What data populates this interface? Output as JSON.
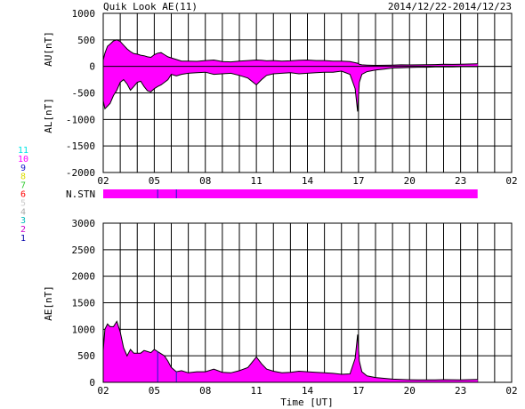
{
  "header": {
    "title": "Quik Look AE(11)",
    "date_range": "2014/12/22-2014/12/23"
  },
  "station_legend": [
    {
      "label": "11",
      "color": "#00e5e5"
    },
    {
      "label": "10",
      "color": "#ff00ff"
    },
    {
      "label": "9",
      "color": "#1a1acc"
    },
    {
      "label": "8",
      "color": "#dddd00"
    },
    {
      "label": "7",
      "color": "#33cc33"
    },
    {
      "label": "6",
      "color": "#ff0000"
    },
    {
      "label": "5",
      "color": "#cccccc"
    },
    {
      "label": "4",
      "color": "#aaaaaa"
    },
    {
      "label": "3",
      "color": "#00bbbb"
    },
    {
      "label": "2",
      "color": "#cc00cc"
    },
    {
      "label": "1",
      "color": "#0000aa"
    }
  ],
  "colors": {
    "fill": "#ff00ff",
    "line": "#000000",
    "marker": "#1a1acc"
  },
  "chart_data": [
    {
      "type": "area",
      "name": "AU-AL",
      "ylabel_top": "AU[nT]",
      "ylabel_bottom": "AL[nT]",
      "ylim": [
        -2000,
        1000
      ],
      "yticks": [
        1000,
        500,
        0,
        -500,
        -1000,
        -1500,
        -2000
      ],
      "xlim": [
        2,
        26
      ],
      "xticks": [
        "02",
        "05",
        "08",
        "11",
        "14",
        "17",
        "20",
        "23",
        "02"
      ],
      "grid": true,
      "x": [
        2.0,
        2.1,
        2.25,
        2.4,
        2.6,
        2.8,
        3.0,
        3.2,
        3.4,
        3.6,
        3.8,
        4.0,
        4.2,
        4.4,
        4.6,
        4.8,
        5.0,
        5.2,
        5.4,
        5.6,
        5.8,
        6.0,
        6.3,
        6.6,
        7.0,
        7.5,
        8.0,
        8.5,
        9.0,
        9.5,
        10.0,
        10.5,
        11.0,
        11.3,
        11.6,
        12.0,
        12.5,
        13.0,
        13.5,
        14.0,
        14.5,
        15.0,
        15.5,
        16.0,
        16.5,
        16.8,
        16.95,
        17.05,
        17.2,
        17.5,
        18.0,
        18.5,
        19.0,
        19.5,
        20.0,
        20.5,
        21.0,
        21.5,
        22.0,
        22.5,
        23.0,
        23.5,
        24.0
      ],
      "au": [
        120,
        250,
        380,
        420,
        480,
        500,
        470,
        400,
        330,
        280,
        240,
        230,
        210,
        200,
        180,
        170,
        220,
        250,
        260,
        220,
        180,
        160,
        130,
        100,
        100,
        95,
        110,
        120,
        90,
        85,
        100,
        110,
        120,
        115,
        105,
        110,
        100,
        105,
        115,
        120,
        110,
        110,
        100,
        100,
        90,
        70,
        60,
        40,
        30,
        25,
        20,
        22,
        25,
        30,
        28,
        30,
        32,
        35,
        40,
        38,
        40,
        45,
        50
      ],
      "al": [
        -650,
        -800,
        -750,
        -700,
        -550,
        -450,
        -300,
        -250,
        -330,
        -450,
        -380,
        -300,
        -280,
        -380,
        -460,
        -480,
        -420,
        -380,
        -350,
        -300,
        -250,
        -150,
        -180,
        -150,
        -130,
        -120,
        -110,
        -150,
        -140,
        -130,
        -170,
        -220,
        -350,
        -250,
        -170,
        -140,
        -130,
        -120,
        -140,
        -130,
        -120,
        -110,
        -110,
        -90,
        -150,
        -420,
        -850,
        -300,
        -150,
        -100,
        -70,
        -50,
        -30,
        -25,
        -20,
        -15,
        -15,
        -10,
        -10,
        -10,
        -5,
        -5,
        -5
      ]
    },
    {
      "type": "bar",
      "name": "N.STN",
      "label": "N.STN",
      "xlim": [
        2,
        26
      ],
      "segments": [
        {
          "from": 2.0,
          "to": 24.0,
          "stations": 10
        }
      ],
      "markers": [
        5.2,
        6.3
      ]
    },
    {
      "type": "area",
      "name": "AE",
      "ylabel": "AE[nT]",
      "xlabel": "Time [UT]",
      "ylim": [
        0,
        3000
      ],
      "yticks": [
        3000,
        2500,
        2000,
        1500,
        1000,
        500,
        0
      ],
      "xlim": [
        2,
        26
      ],
      "xticks": [
        "02",
        "05",
        "08",
        "11",
        "14",
        "17",
        "20",
        "23",
        "02"
      ],
      "grid": true,
      "x": [
        2.0,
        2.1,
        2.25,
        2.4,
        2.6,
        2.8,
        3.0,
        3.2,
        3.4,
        3.6,
        3.8,
        4.0,
        4.2,
        4.4,
        4.6,
        4.8,
        5.0,
        5.2,
        5.4,
        5.6,
        5.8,
        6.0,
        6.3,
        6.6,
        7.0,
        7.5,
        8.0,
        8.5,
        9.0,
        9.5,
        10.0,
        10.5,
        11.0,
        11.3,
        11.6,
        12.0,
        12.5,
        13.0,
        13.5,
        14.0,
        14.5,
        15.0,
        15.5,
        16.0,
        16.5,
        16.8,
        16.95,
        17.05,
        17.2,
        17.5,
        18.0,
        18.5,
        19.0,
        19.5,
        20.0,
        20.5,
        21.0,
        21.5,
        22.0,
        22.5,
        23.0,
        23.5,
        24.0
      ],
      "values": [
        600,
        1000,
        1100,
        1050,
        1050,
        1150,
        950,
        650,
        500,
        620,
        550,
        550,
        550,
        600,
        580,
        560,
        620,
        580,
        540,
        500,
        400,
        280,
        200,
        220,
        180,
        200,
        200,
        250,
        190,
        180,
        220,
        280,
        480,
        350,
        250,
        210,
        180,
        190,
        210,
        200,
        190,
        180,
        170,
        150,
        160,
        450,
        900,
        400,
        200,
        120,
        90,
        75,
        60,
        55,
        48,
        46,
        45,
        45,
        50,
        48,
        45,
        50,
        55
      ]
    }
  ]
}
